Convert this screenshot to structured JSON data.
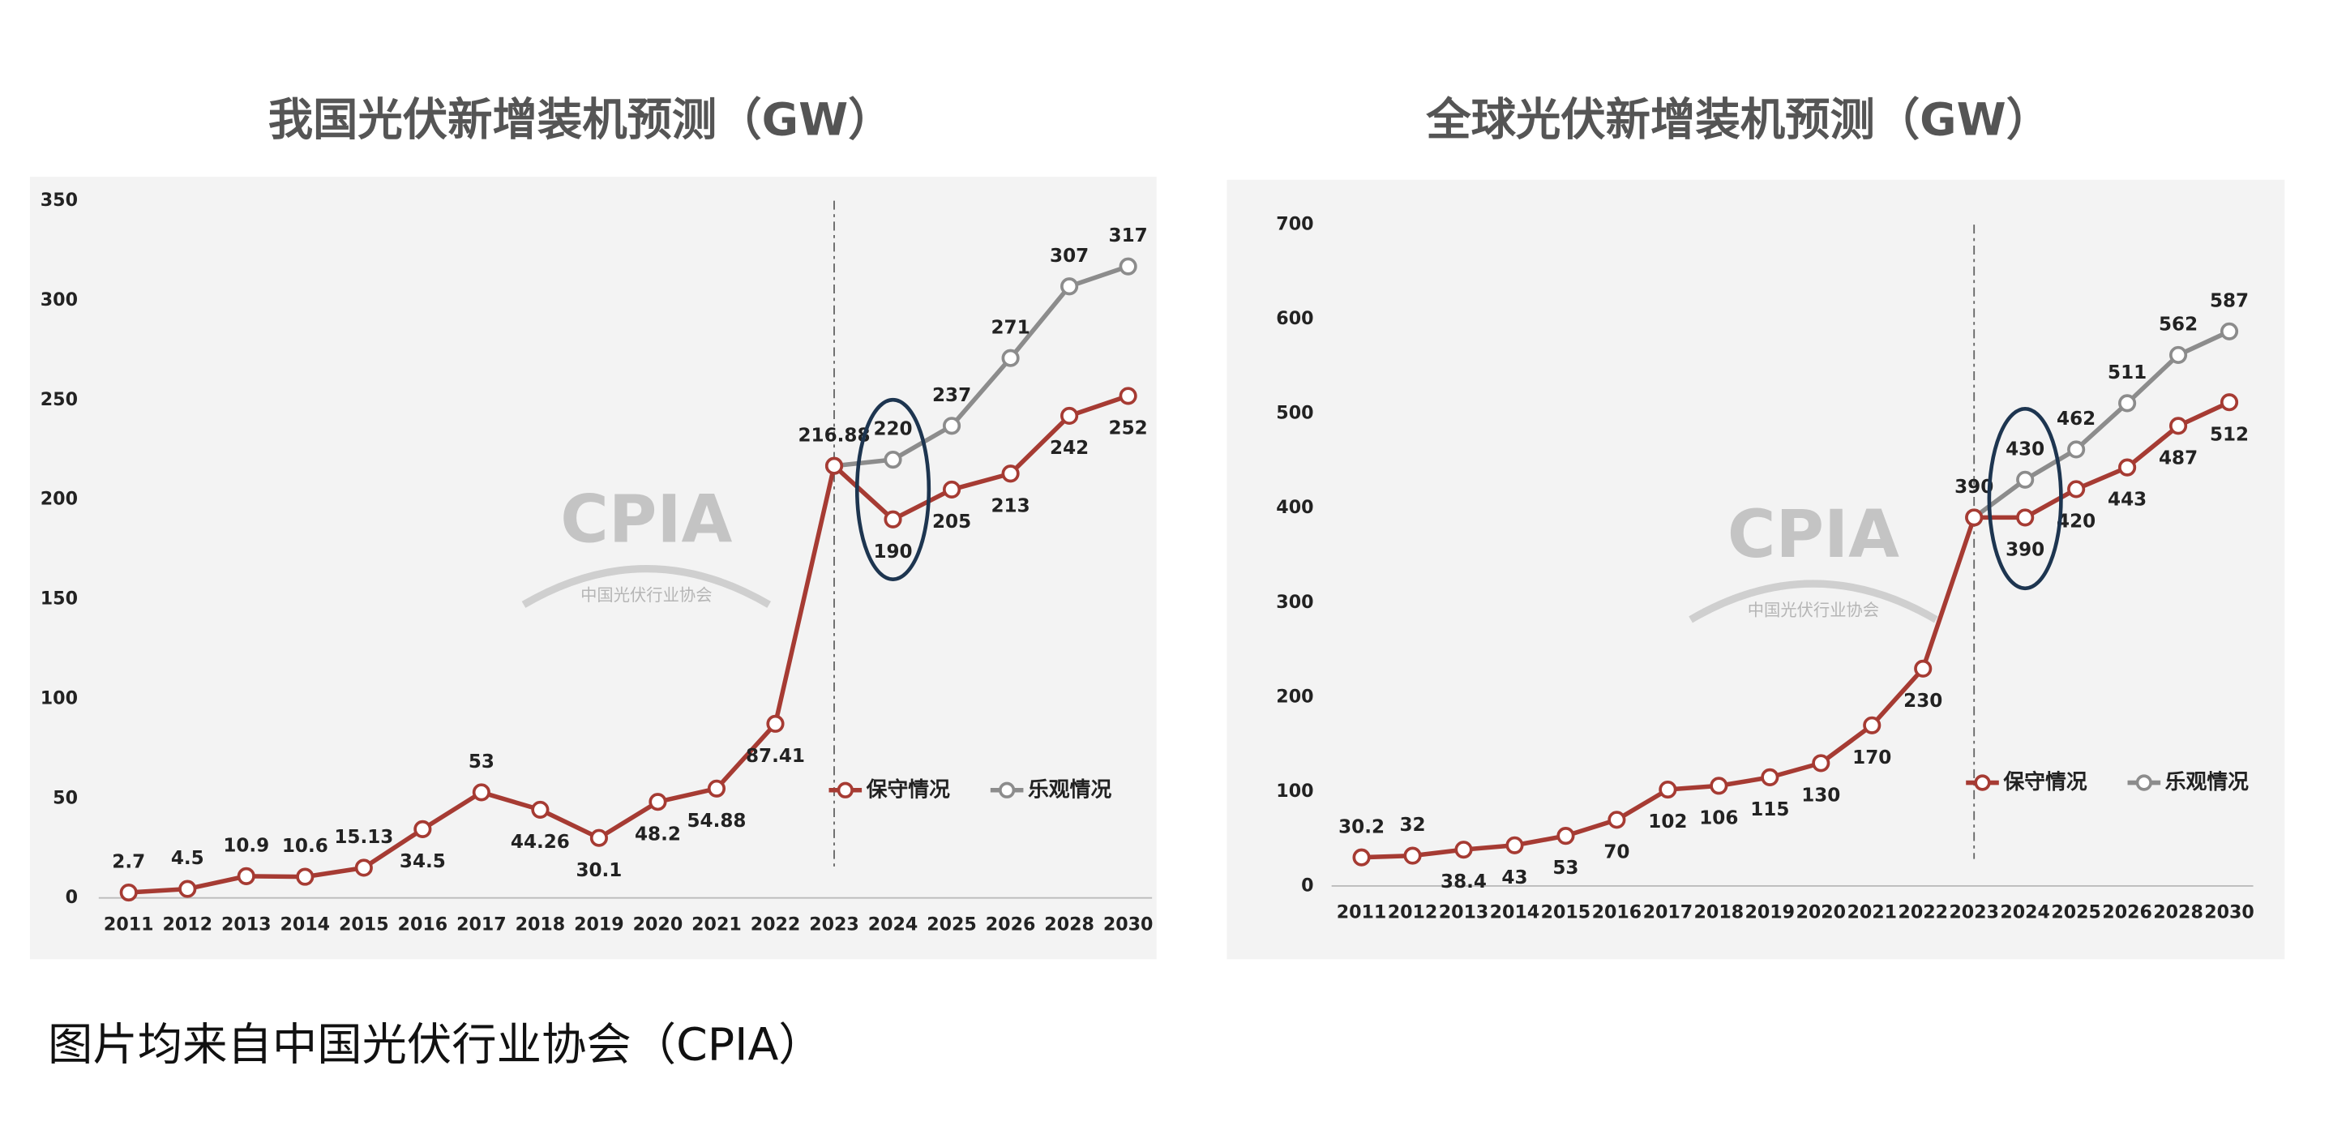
{
  "charts": [
    {
      "chart_data": {
        "type": "line",
        "title": "我国光伏新增装机预测（GW）",
        "categories": [
          "2011",
          "2012",
          "2013",
          "2014",
          "2015",
          "2016",
          "2017",
          "2018",
          "2019",
          "2020",
          "2021",
          "2022",
          "2023",
          "2024",
          "2025",
          "2026",
          "2028",
          "2030"
        ],
        "series": [
          {
            "name": "保守情况",
            "color": "#a63b33",
            "values": [
              2.7,
              4.5,
              10.9,
              10.6,
              15.13,
              34.5,
              53,
              44.26,
              30.1,
              48.2,
              54.88,
              87.41,
              216.88,
              190,
              205,
              213,
              242,
              252
            ]
          },
          {
            "name": "乐观情况",
            "color": "#8c8c8c",
            "values": [
              null,
              null,
              null,
              null,
              null,
              null,
              null,
              null,
              null,
              null,
              null,
              null,
              216.88,
              220,
              237,
              271,
              307,
              317
            ]
          }
        ],
        "ylim": [
          0,
          350
        ],
        "yticks": [
          0,
          50,
          100,
          150,
          200,
          250,
          300,
          350
        ],
        "grid": false,
        "legend": "right",
        "watermark": "CPIA",
        "watermark_subtitle": "中国光伏行业协会"
      }
    },
    {
      "chart_data": {
        "type": "line",
        "title": "全球光伏新增装机预测（GW）",
        "categories": [
          "2011",
          "2012",
          "2013",
          "2014",
          "2015",
          "2016",
          "2017",
          "2018",
          "2019",
          "2020",
          "2021",
          "2022",
          "2023",
          "2024",
          "2025",
          "2026",
          "2028",
          "2030"
        ],
        "series": [
          {
            "name": "保守情况",
            "color": "#a63b33",
            "values": [
              30.2,
              32,
              38.4,
              43,
              53,
              70,
              102,
              106,
              115,
              130,
              170,
              230,
              390,
              390,
              420,
              443,
              487,
              512
            ]
          },
          {
            "name": "乐观情况",
            "color": "#8c8c8c",
            "values": [
              null,
              null,
              null,
              null,
              null,
              null,
              null,
              null,
              null,
              null,
              null,
              null,
              390,
              430,
              462,
              511,
              562,
              587
            ]
          }
        ],
        "ylim": [
          0,
          700
        ],
        "yticks": [
          0,
          100,
          200,
          300,
          400,
          500,
          600,
          700
        ],
        "grid": false,
        "legend": "right",
        "watermark": "CPIA",
        "watermark_subtitle": "中国光伏行业协会"
      }
    }
  ],
  "footer": "图片均来自中国光伏行业协会（CPIA）"
}
